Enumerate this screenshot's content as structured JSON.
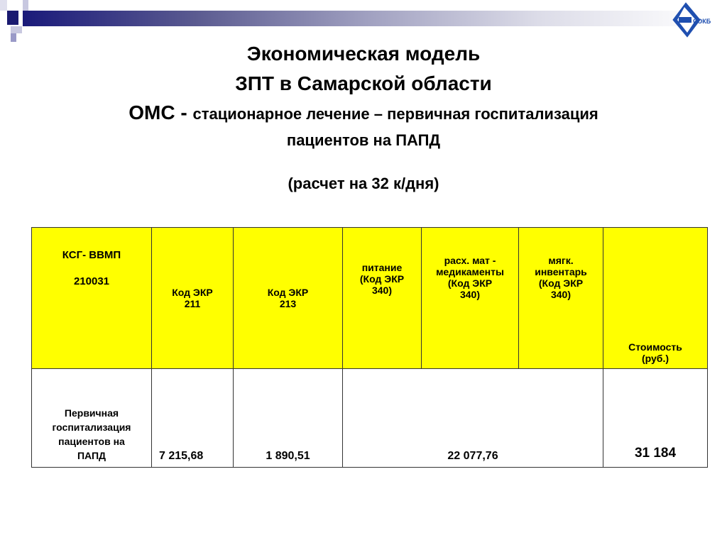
{
  "title": {
    "line1": "Экономическая модель",
    "line2": "ЗПТ в Самарской области",
    "line3_prefix": "ОМС - ",
    "line3_rest": "стационарное лечение – первичная госпитализация",
    "line4": "пациентов на ПАПД",
    "line5": "(расчет на 32 к/дня)"
  },
  "logo": {
    "text": "СОКБ"
  },
  "table": {
    "headers": [
      {
        "a": "КСГ- ВВМП",
        "b": "210031"
      },
      {
        "a": "Код ЭКР",
        "b": "211"
      },
      {
        "a": "Код ЭКР",
        "b": "213"
      },
      {
        "a": "питание",
        "b": "(Код ЭКР",
        "c": "340)"
      },
      {
        "a": "расх. мат -",
        "b": "медикаменты",
        "c": "(Код ЭКР",
        "d": "340)"
      },
      {
        "a": "мягк.",
        "b": "инвентарь",
        "c": "(Код ЭКР",
        "d": "340)"
      },
      {
        "a": "Стоимость",
        "b": "(руб.)"
      }
    ],
    "row": {
      "name_lines": [
        "Первичная",
        "госпитализация",
        "пациентов на",
        "ПАПД"
      ],
      "ekr211": "7 215,68",
      "ekr213": "1 890,51",
      "ekr340": "22 077,76",
      "cost": "31 184"
    }
  }
}
